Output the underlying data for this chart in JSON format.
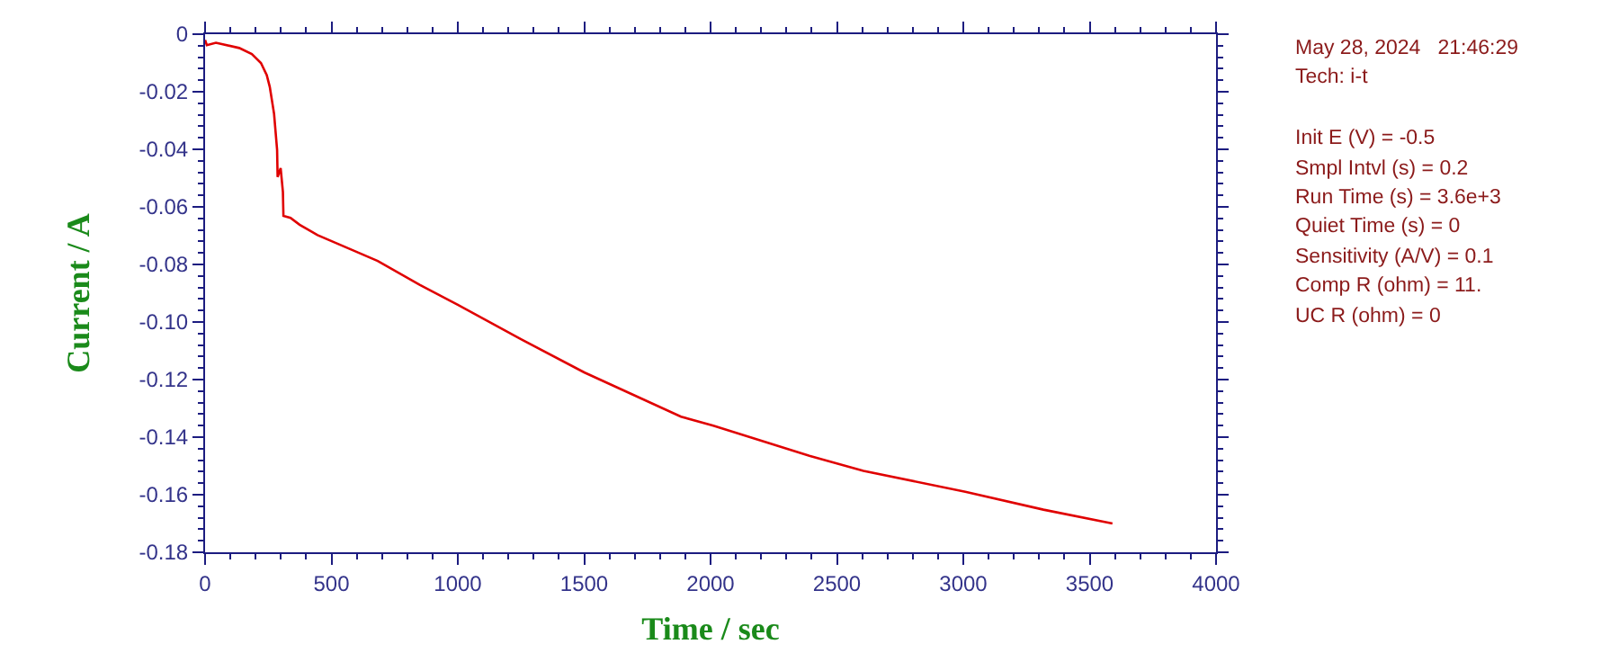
{
  "chart_data": {
    "type": "line",
    "xlabel": "Time / sec",
    "ylabel": "Current / A",
    "x": [
      0,
      7,
      43,
      135,
      185,
      221,
      244,
      256,
      273,
      285,
      287,
      299,
      308,
      310,
      338,
      374,
      445,
      588,
      683,
      849,
      1000,
      1250,
      1500,
      1883,
      2011,
      2391,
      2605,
      3008,
      3317,
      3590
    ],
    "series": [
      {
        "color": "#e00000",
        "values": [
          -0.002,
          -0.0038,
          -0.003,
          -0.0048,
          -0.0069,
          -0.01,
          -0.0142,
          -0.0183,
          -0.0277,
          -0.0402,
          -0.0496,
          -0.0465,
          -0.0548,
          -0.0631,
          -0.0638,
          -0.0662,
          -0.0698,
          -0.0752,
          -0.0788,
          -0.0871,
          -0.094,
          -0.106,
          -0.1175,
          -0.1329,
          -0.136,
          -0.1465,
          -0.1517,
          -0.159,
          -0.1652,
          -0.17
        ]
      }
    ],
    "xlim": [
      0,
      4000
    ],
    "xticks": [
      0,
      500,
      1000,
      1500,
      2000,
      2500,
      3000,
      3500,
      4000
    ],
    "ylim": [
      -0.18,
      0
    ],
    "yticks": [
      0,
      -0.02,
      -0.04,
      -0.06,
      -0.08,
      {
        "value": -0.1,
        "label": "-0.10"
      },
      -0.12,
      -0.14,
      -0.16,
      -0.18
    ],
    "marker": "none",
    "line_style": "solid",
    "annotations": [
      "May 28, 2024   21:46:29",
      "Tech: i-t",
      "Init E (V) = -0.5",
      "Smpl Intvl (s) = 0.2",
      "Run Time (s) = 3.6e+3",
      "Quiet Time (s) = 0",
      "Sensitivity (A/V) = 0.1",
      "Comp R (ohm) = 11.",
      "UC R (ohm) = 0"
    ]
  }
}
